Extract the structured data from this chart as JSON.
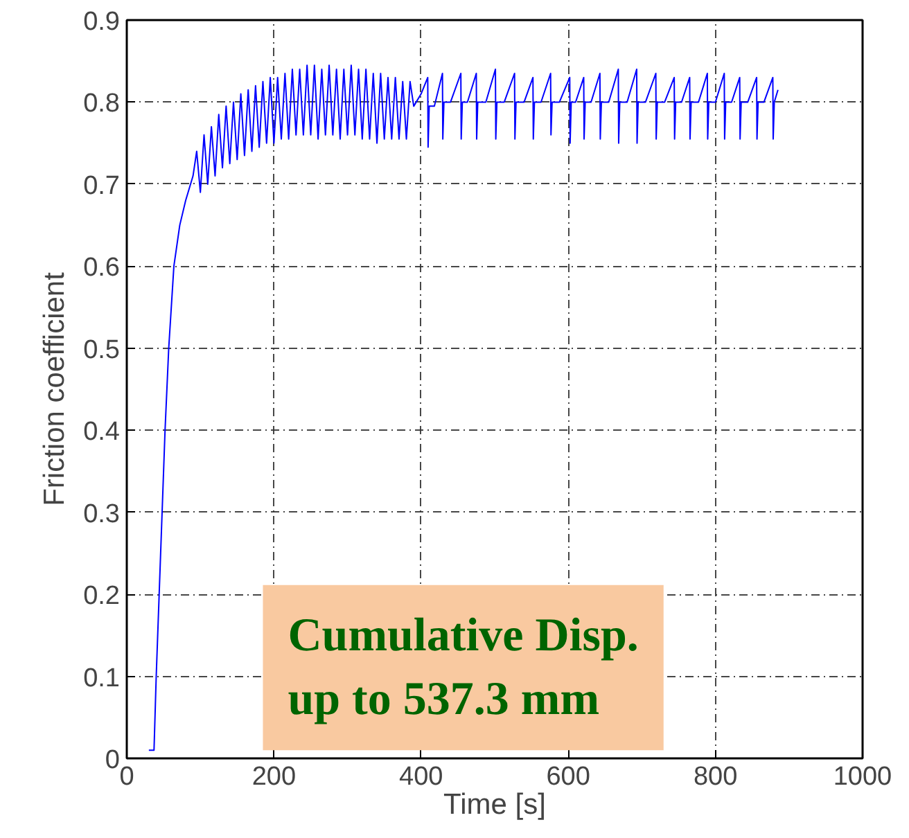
{
  "chart_data": {
    "type": "line",
    "xlabel": "Time [s]",
    "ylabel": "Friction coefficient",
    "xlim": [
      0,
      1000
    ],
    "ylim": [
      0,
      0.9
    ],
    "xticks": [
      0,
      200,
      400,
      600,
      800,
      1000
    ],
    "yticks": [
      0,
      0.1,
      0.2,
      0.3,
      0.4,
      0.5,
      0.6,
      0.7,
      0.8,
      0.9
    ],
    "grid": true,
    "line_style": "solid",
    "marker": "none",
    "annotations": [
      "Cumulative Disp.\nup to 537.3 mm"
    ],
    "series": [
      {
        "color": "#0000ff",
        "x": [
          30,
          37,
          40,
          44,
          48,
          52,
          57,
          64,
          72,
          80,
          90,
          95,
          100,
          105,
          110,
          115,
          120,
          125,
          130,
          135,
          140,
          145,
          150,
          155,
          160,
          165,
          170,
          175,
          180,
          185,
          190,
          195,
          200,
          205,
          210,
          215,
          220,
          225,
          230,
          235,
          240,
          245,
          250,
          255,
          260,
          265,
          270,
          275,
          280,
          285,
          290,
          295,
          300,
          305,
          310,
          315,
          320,
          325,
          330,
          335,
          340,
          345,
          350,
          355,
          360,
          365,
          370,
          375,
          380,
          385,
          390,
          400,
          409,
          409.5,
          411,
          418,
          429,
          429.5,
          431,
          440,
          454,
          454.5,
          456,
          463,
          475,
          475.5,
          477,
          488,
          501,
          501.5,
          503,
          513,
          527,
          527.5,
          529,
          540,
          552,
          552.5,
          554,
          563,
          576,
          576.5,
          578,
          588,
          602,
          602.5,
          604,
          610,
          621,
          621.5,
          623,
          631,
          643,
          643.5,
          645,
          655,
          668,
          668.5,
          670,
          680,
          693,
          693.5,
          695,
          705,
          719,
          719.5,
          721,
          731,
          744,
          744.5,
          746,
          754,
          765,
          765.5,
          767,
          777,
          789,
          789.5,
          791,
          800,
          812,
          812.5,
          814,
          822,
          833,
          833.5,
          835,
          844,
          856,
          856.5,
          858,
          866,
          878,
          878.5,
          880,
          885
        ],
        "values": [
          0.01,
          0.01,
          0.1,
          0.2,
          0.3,
          0.4,
          0.5,
          0.6,
          0.65,
          0.68,
          0.71,
          0.74,
          0.69,
          0.76,
          0.7,
          0.77,
          0.71,
          0.785,
          0.72,
          0.795,
          0.725,
          0.8,
          0.73,
          0.81,
          0.735,
          0.815,
          0.74,
          0.82,
          0.745,
          0.825,
          0.75,
          0.83,
          0.75,
          0.83,
          0.755,
          0.835,
          0.755,
          0.84,
          0.76,
          0.84,
          0.76,
          0.845,
          0.76,
          0.845,
          0.755,
          0.84,
          0.76,
          0.845,
          0.76,
          0.84,
          0.755,
          0.84,
          0.76,
          0.845,
          0.76,
          0.84,
          0.755,
          0.84,
          0.755,
          0.835,
          0.75,
          0.835,
          0.755,
          0.83,
          0.755,
          0.83,
          0.755,
          0.825,
          0.755,
          0.825,
          0.795,
          0.81,
          0.83,
          0.745,
          0.795,
          0.795,
          0.835,
          0.755,
          0.8,
          0.8,
          0.835,
          0.755,
          0.8,
          0.8,
          0.835,
          0.755,
          0.8,
          0.8,
          0.84,
          0.755,
          0.8,
          0.8,
          0.835,
          0.755,
          0.8,
          0.8,
          0.83,
          0.755,
          0.8,
          0.8,
          0.835,
          0.76,
          0.8,
          0.8,
          0.83,
          0.75,
          0.8,
          0.8,
          0.83,
          0.755,
          0.8,
          0.8,
          0.835,
          0.755,
          0.8,
          0.8,
          0.84,
          0.75,
          0.8,
          0.8,
          0.84,
          0.75,
          0.8,
          0.8,
          0.835,
          0.755,
          0.8,
          0.8,
          0.83,
          0.755,
          0.8,
          0.8,
          0.83,
          0.755,
          0.8,
          0.8,
          0.835,
          0.755,
          0.8,
          0.8,
          0.835,
          0.755,
          0.8,
          0.8,
          0.83,
          0.755,
          0.8,
          0.8,
          0.83,
          0.755,
          0.8,
          0.8,
          0.83,
          0.755,
          0.8,
          0.815
        ]
      }
    ]
  }
}
